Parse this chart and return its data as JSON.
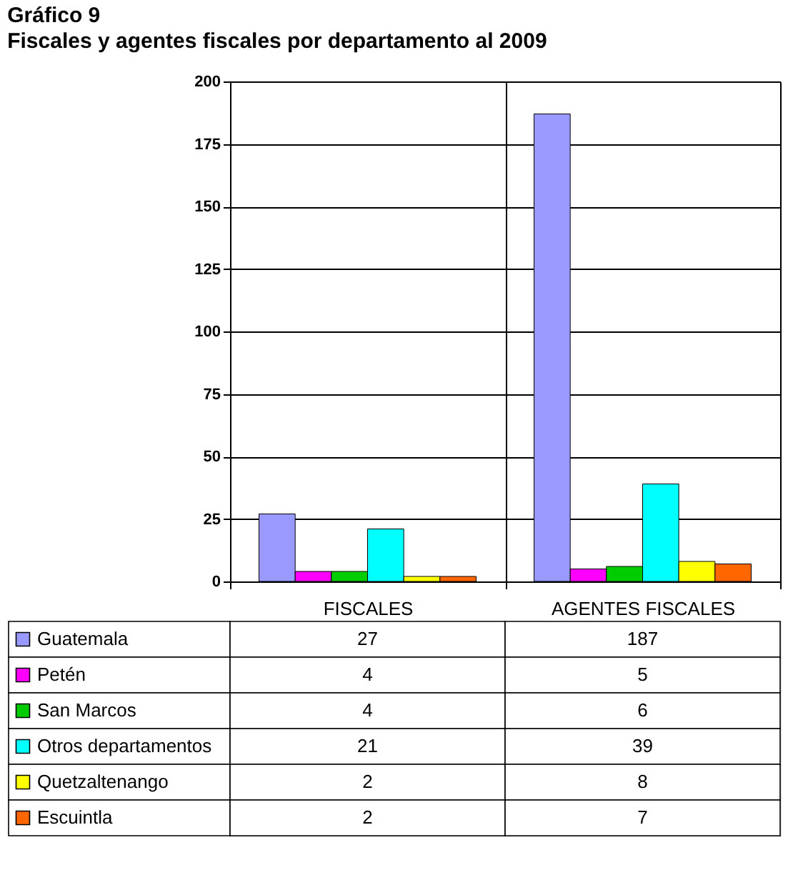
{
  "chart_data": {
    "type": "bar",
    "title": "Gráfico 9",
    "subtitle": "Fiscales y agentes fiscales por departamento al 2009",
    "categories": [
      "FISCALES",
      "AGENTES FISCALES"
    ],
    "series": [
      {
        "name": "Guatemala",
        "color": "#9999ff",
        "values": [
          27,
          187
        ]
      },
      {
        "name": "Petén",
        "color": "#ff00ff",
        "values": [
          4,
          5
        ]
      },
      {
        "name": "San Marcos",
        "color": "#00cc00",
        "values": [
          4,
          6
        ]
      },
      {
        "name": "Otros departamentos",
        "color": "#00ffff",
        "values": [
          21,
          39
        ]
      },
      {
        "name": "Quetzaltenango",
        "color": "#ffff00",
        "values": [
          2,
          8
        ]
      },
      {
        "name": "Escuintla",
        "color": "#ff6600",
        "values": [
          2,
          7
        ]
      }
    ],
    "ylim": [
      0,
      200
    ],
    "yticks": [
      0,
      25,
      50,
      75,
      100,
      125,
      150,
      175,
      200
    ],
    "grid": "y",
    "legend": "bottom",
    "data_labels": true
  }
}
